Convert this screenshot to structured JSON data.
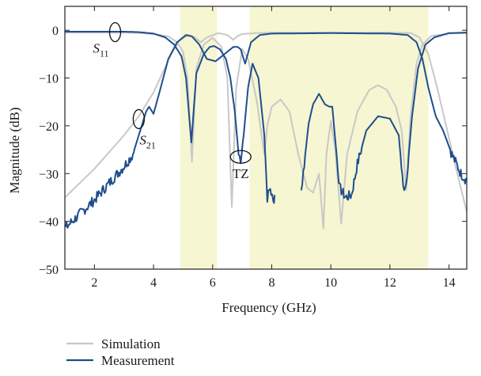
{
  "chart_data": {
    "type": "line",
    "xlabel": "Frequency (GHz)",
    "ylabel": "Magnitude (dB)",
    "xlim": [
      1,
      14.6
    ],
    "ylim": [
      -50,
      5
    ],
    "xticks": [
      2,
      4,
      6,
      8,
      10,
      12,
      14
    ],
    "yticks": [
      0,
      -10,
      -20,
      -30,
      -40,
      -50
    ],
    "grid": false,
    "legend_position": "bottom-left, below plot",
    "shaded_bands": [
      [
        4.9,
        6.15
      ],
      [
        7.25,
        13.3
      ]
    ],
    "shade_color": "#f6f6d2",
    "annotations": [
      {
        "label": "S",
        "sub": "11",
        "x": 2.7,
        "y": -0.4
      },
      {
        "label": "S",
        "sub": "21",
        "x": 3.5,
        "y": -18.6
      },
      {
        "label": "TZ",
        "x": 6.95,
        "y": -26.5
      }
    ],
    "series": [
      {
        "name": "Simulation",
        "color": "#c8c8c8",
        "curves": [
          {
            "id": "sim_s11",
            "points": [
              [
                1,
                -0.5
              ],
              [
                2,
                -0.5
              ],
              [
                3,
                -0.5
              ],
              [
                3.5,
                -0.6
              ],
              [
                4,
                -0.8
              ],
              [
                4.5,
                -1.3
              ],
              [
                4.8,
                -2.5
              ],
              [
                5.0,
                -4.5
              ],
              [
                5.15,
                -10
              ],
              [
                5.3,
                -27.5
              ],
              [
                5.45,
                -8
              ],
              [
                5.7,
                -3
              ],
              [
                6.0,
                -1.6
              ],
              [
                6.3,
                -3.5
              ],
              [
                6.5,
                -10
              ],
              [
                6.65,
                -37
              ],
              [
                6.8,
                -12
              ],
              [
                7.0,
                -4
              ],
              [
                7.2,
                -6
              ],
              [
                7.5,
                -15
              ],
              [
                7.75,
                -26
              ],
              [
                7.85,
                -20
              ],
              [
                8.0,
                -16
              ],
              [
                8.3,
                -14.5
              ],
              [
                8.6,
                -17
              ],
              [
                8.9,
                -26
              ],
              [
                9.2,
                -33
              ],
              [
                9.4,
                -34
              ],
              [
                9.6,
                -30
              ],
              [
                9.75,
                -41.5
              ],
              [
                9.85,
                -26
              ],
              [
                10.0,
                -19
              ],
              [
                10.15,
                -25
              ],
              [
                10.35,
                -40.5
              ],
              [
                10.55,
                -26
              ],
              [
                10.9,
                -17
              ],
              [
                11.3,
                -12.5
              ],
              [
                11.6,
                -11.5
              ],
              [
                11.9,
                -12.5
              ],
              [
                12.2,
                -16
              ],
              [
                12.4,
                -21
              ],
              [
                12.55,
                -33.5
              ],
              [
                12.7,
                -18
              ],
              [
                12.9,
                -7
              ],
              [
                13.1,
                -3
              ],
              [
                13.4,
                -1.2
              ],
              [
                14,
                -0.7
              ],
              [
                14.6,
                -0.6
              ]
            ]
          },
          {
            "id": "sim_s21",
            "points": [
              [
                1,
                -35
              ],
              [
                1.5,
                -32
              ],
              [
                2,
                -29
              ],
              [
                2.5,
                -25.5
              ],
              [
                3,
                -22
              ],
              [
                3.5,
                -18
              ],
              [
                4,
                -13
              ],
              [
                4.3,
                -9
              ],
              [
                4.6,
                -5
              ],
              [
                4.9,
                -2
              ],
              [
                5.2,
                -1
              ],
              [
                5.4,
                -1.5
              ],
              [
                5.6,
                -2.5
              ],
              [
                5.8,
                -1.5
              ],
              [
                6.2,
                -0.6
              ],
              [
                6.5,
                -1
              ],
              [
                6.7,
                -2
              ],
              [
                6.85,
                -1.2
              ],
              [
                7.0,
                -0.8
              ],
              [
                7.5,
                -0.6
              ],
              [
                8,
                -0.5
              ],
              [
                10,
                -0.5
              ],
              [
                12,
                -0.5
              ],
              [
                12.7,
                -0.6
              ],
              [
                13.0,
                -1.5
              ],
              [
                13.3,
                -5
              ],
              [
                13.6,
                -12
              ],
              [
                13.9,
                -20
              ],
              [
                14.2,
                -28
              ],
              [
                14.6,
                -38
              ]
            ]
          }
        ]
      },
      {
        "name": "Measurement",
        "color": "#1f4e8c",
        "curves": [
          {
            "id": "meas_s11",
            "points": [
              [
                1,
                -0.3
              ],
              [
                2,
                -0.3
              ],
              [
                3,
                -0.3
              ],
              [
                3.5,
                -0.4
              ],
              [
                4,
                -0.7
              ],
              [
                4.4,
                -1.5
              ],
              [
                4.7,
                -3
              ],
              [
                4.95,
                -5.5
              ],
              [
                5.1,
                -10
              ],
              [
                5.28,
                -23.5
              ],
              [
                5.45,
                -9
              ],
              [
                5.7,
                -5
              ],
              [
                5.9,
                -3.5
              ],
              [
                6.05,
                -3.3
              ],
              [
                6.25,
                -4
              ],
              [
                6.45,
                -6
              ],
              [
                6.6,
                -10
              ],
              [
                6.75,
                -17
              ],
              [
                6.88,
                -26
              ],
              [
                6.95,
                -27
              ],
              [
                7.05,
                -22
              ],
              [
                7.2,
                -12
              ],
              [
                7.35,
                -7
              ],
              [
                7.55,
                -10
              ],
              [
                7.75,
                -22
              ],
              [
                7.85,
                -35
              ],
              [
                7.95,
                -33
              ],
              [
                8.05,
                -36
              ],
              [
                8.1,
                -34.5
              ]
            ]
          },
          {
            "id": "meas_s11b",
            "points": [
              [
                9.0,
                -33.5
              ],
              [
                9.1,
                -28
              ],
              [
                9.25,
                -19.5
              ],
              [
                9.4,
                -15.5
              ],
              [
                9.6,
                -13.3
              ],
              [
                9.8,
                -15.5
              ],
              [
                9.95,
                -16
              ],
              [
                10.05,
                -16
              ],
              [
                10.15,
                -23
              ],
              [
                10.3,
                -33
              ],
              [
                10.5,
                -35
              ],
              [
                10.7,
                -34.5
              ],
              [
                10.9,
                -28
              ],
              [
                11.2,
                -21
              ],
              [
                11.6,
                -18
              ],
              [
                12.0,
                -18.5
              ],
              [
                12.3,
                -22
              ],
              [
                12.45,
                -33
              ],
              [
                12.55,
                -32
              ],
              [
                12.75,
                -18
              ],
              [
                12.95,
                -8
              ],
              [
                13.2,
                -3
              ],
              [
                13.5,
                -1.5
              ],
              [
                14.0,
                -0.6
              ],
              [
                14.6,
                -0.5
              ]
            ]
          },
          {
            "id": "meas_s21",
            "points": [
              [
                1,
                -41.5
              ],
              [
                1.5,
                -38.5
              ],
              [
                2,
                -35.5
              ],
              [
                2.5,
                -32
              ],
              [
                3,
                -28.5
              ],
              [
                3.3,
                -26
              ],
              [
                3.55,
                -21
              ],
              [
                3.75,
                -17
              ],
              [
                3.85,
                -16
              ],
              [
                4.0,
                -17.5
              ],
              [
                4.2,
                -13
              ],
              [
                4.5,
                -6
              ],
              [
                4.8,
                -2.5
              ],
              [
                5.1,
                -1
              ],
              [
                5.3,
                -1.3
              ],
              [
                5.55,
                -3
              ],
              [
                5.8,
                -6
              ],
              [
                6.1,
                -6.5
              ],
              [
                6.4,
                -5
              ],
              [
                6.7,
                -3.5
              ],
              [
                6.85,
                -3.5
              ],
              [
                6.95,
                -4
              ],
              [
                7.1,
                -7
              ],
              [
                7.3,
                -2.5
              ],
              [
                7.6,
                -1
              ],
              [
                8,
                -0.7
              ],
              [
                10,
                -0.6
              ],
              [
                12,
                -0.7
              ],
              [
                12.6,
                -1
              ],
              [
                12.9,
                -2.5
              ],
              [
                13.1,
                -6
              ],
              [
                13.3,
                -12
              ],
              [
                13.55,
                -18
              ],
              [
                13.8,
                -21
              ],
              [
                14.1,
                -26
              ],
              [
                14.4,
                -30
              ],
              [
                14.6,
                -31.5
              ]
            ]
          }
        ]
      }
    ]
  }
}
